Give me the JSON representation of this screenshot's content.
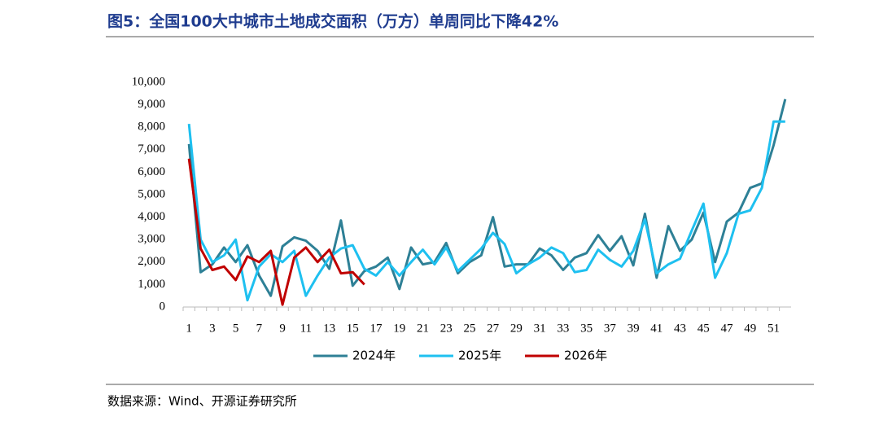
{
  "chart_data": {
    "type": "line",
    "title": "图5：全国100大中城市土地成交面积（万方）单周同比下降42%",
    "source": "数据来源：Wind、开源证券研究所",
    "categories": [
      "1",
      null,
      "3",
      null,
      "5",
      null,
      "7",
      null,
      "9",
      null,
      "11",
      null,
      "13",
      null,
      "15",
      null,
      "17",
      null,
      "19",
      null,
      "21",
      null,
      "23",
      null,
      "25",
      null,
      "27",
      null,
      "29",
      null,
      "31",
      null,
      "33",
      null,
      "35",
      null,
      "37",
      null,
      "39",
      null,
      "41",
      null,
      "43",
      null,
      "45",
      null,
      "47",
      null,
      "49",
      null,
      "51",
      null
    ],
    "ylim": [
      0,
      10000
    ],
    "yticks": [
      0,
      {
        "value": 1000,
        "label": "1,000"
      },
      {
        "value": 2000,
        "label": "2,000"
      },
      {
        "value": 3000,
        "label": "3,000"
      },
      {
        "value": 4000,
        "label": "4,000"
      },
      {
        "value": 5000,
        "label": "5,000"
      },
      {
        "value": 6000,
        "label": "6,000"
      },
      {
        "value": 7000,
        "label": "7,000"
      },
      {
        "value": 8000,
        "label": "8,000"
      },
      {
        "value": 9000,
        "label": "9,000"
      },
      {
        "value": 10000,
        "label": "10,000"
      }
    ],
    "grid": false,
    "legend": "bottom",
    "series": [
      {
        "name": "2024年",
        "color": "#2e8096",
        "values": [
          7250,
          1550,
          1900,
          2650,
          2000,
          2750,
          1400,
          500,
          2700,
          3100,
          2950,
          2500,
          1700,
          3850,
          950,
          1600,
          1800,
          2200,
          800,
          2650,
          1900,
          2000,
          2850,
          1500,
          2000,
          2300,
          4000,
          1800,
          1900,
          1900,
          2600,
          2300,
          1650,
          2200,
          2400,
          3200,
          2500,
          3150,
          1850,
          4150,
          1300,
          3600,
          2500,
          3000,
          4200,
          2000,
          3800,
          4200,
          5300,
          5500,
          7200,
          9250
        ]
      },
      {
        "name": "2025年",
        "color": "#1ec0f0",
        "values": [
          8150,
          3000,
          2000,
          2300,
          3000,
          300,
          1800,
          2350,
          2000,
          2500,
          500,
          1400,
          2200,
          2600,
          2750,
          1700,
          1400,
          2000,
          1400,
          2000,
          2550,
          1900,
          2650,
          1600,
          2100,
          2600,
          3300,
          2800,
          1500,
          1900,
          2200,
          2650,
          2400,
          1550,
          1650,
          2550,
          2100,
          1800,
          2500,
          3900,
          1500,
          1900,
          2150,
          3400,
          4600,
          1300,
          2400,
          4150,
          4300,
          5300,
          8250,
          8250
        ]
      },
      {
        "name": "2026年",
        "color": "#c00000",
        "values": [
          6600,
          2600,
          1650,
          1800,
          1200,
          2250,
          2000,
          2500,
          100,
          2200,
          2650,
          2000,
          2550,
          1500,
          1550,
          1000,
          null,
          null,
          null,
          null,
          null,
          null,
          null,
          null,
          null,
          null,
          null,
          null,
          null,
          null,
          null,
          null,
          null,
          null,
          null,
          null,
          null,
          null,
          null,
          null,
          null,
          null,
          null,
          null,
          null,
          null,
          null,
          null,
          null,
          null,
          null,
          null
        ]
      }
    ]
  }
}
